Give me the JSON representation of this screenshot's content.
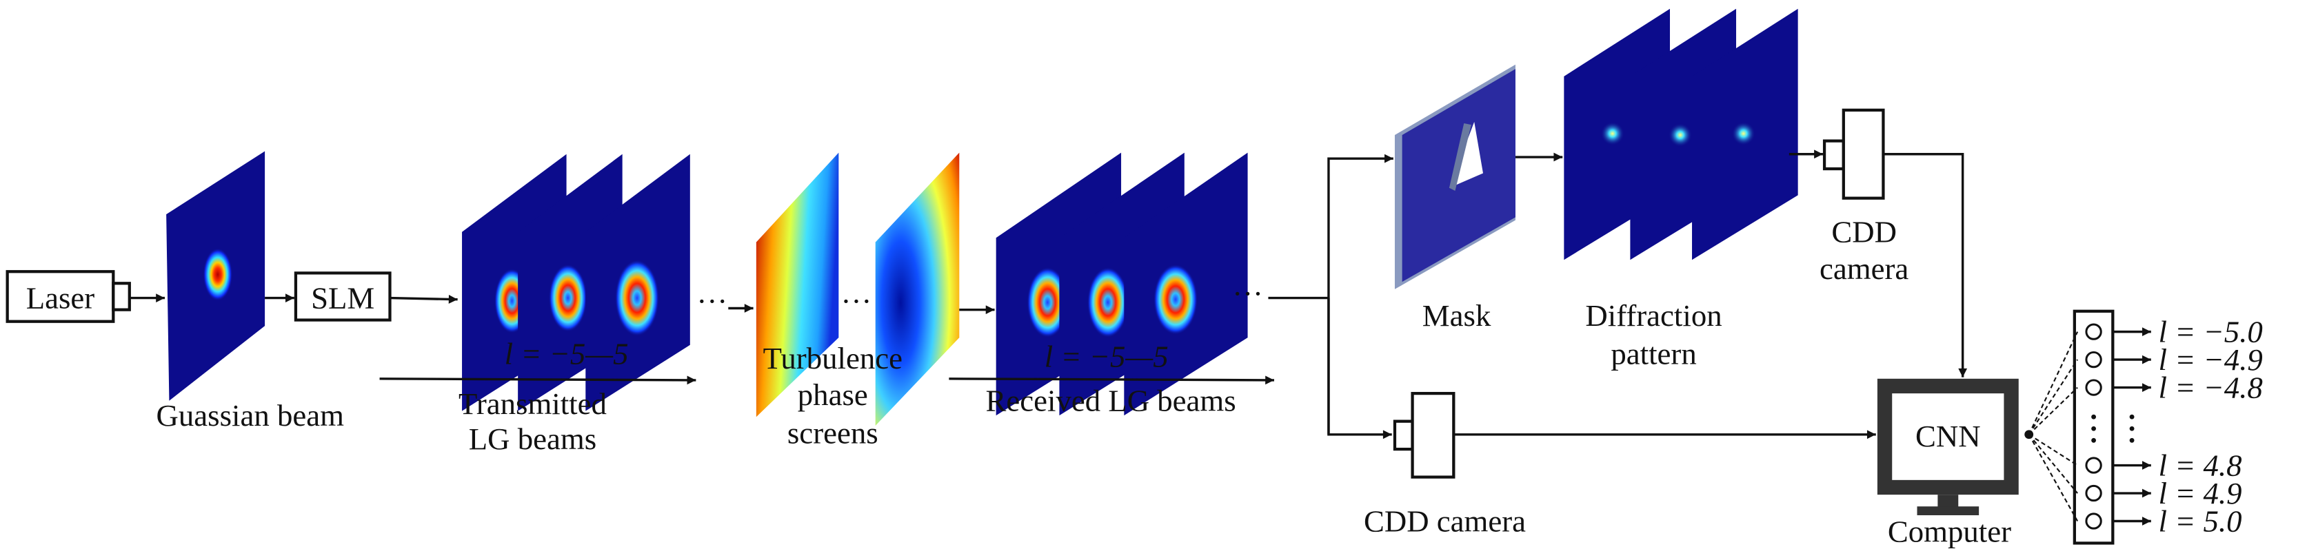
{
  "labels": {
    "laser": "Laser",
    "slm": "SLM",
    "gaussian_beam": "Guassian beam",
    "transmitted_range": "l = −5—5",
    "transmitted_line1": "Transmitted",
    "transmitted_line2": "LG beams",
    "turbulence_line1": "Turbulence",
    "turbulence_line2": "phase",
    "turbulence_line3": "screens",
    "received_range": "l = −5—5",
    "received": "Received LG beams",
    "mask": "Mask",
    "diffraction_line1": "Diffraction",
    "diffraction_line2": "pattern",
    "cdd_top_line1": "CDD",
    "cdd_top_line2": "camera",
    "cdd_bottom": "CDD camera",
    "cnn": "CNN",
    "computer": "Computer",
    "ellipsis": "···"
  },
  "outputs": [
    "l = −5.0",
    "l = −4.9",
    "l = −4.8",
    "l = 4.8",
    "l = 4.9",
    "l = 5.0"
  ],
  "colors": {
    "beam_background": "#0c0c8c",
    "mask": "#2a2aa0",
    "mask_edge": "#8a9ac0",
    "computer": "#333333"
  }
}
